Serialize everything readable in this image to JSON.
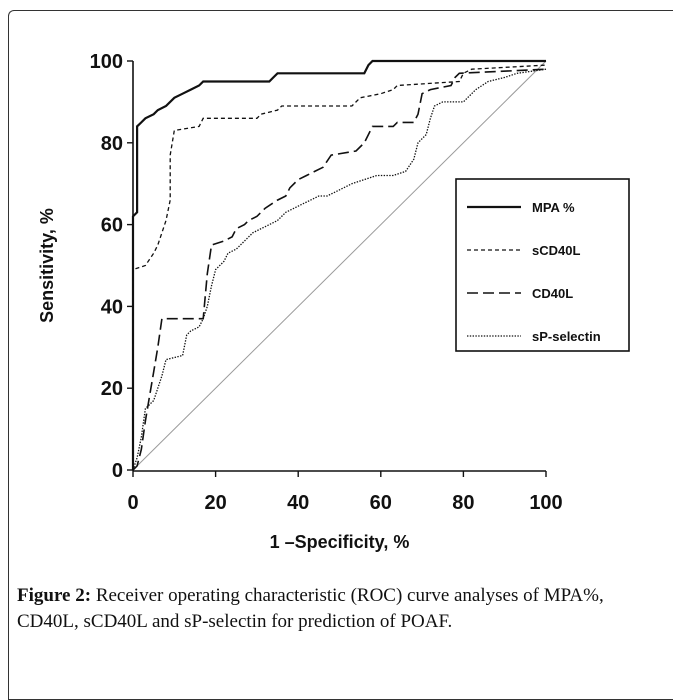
{
  "caption": {
    "label": "Figure 2:",
    "text": " Receiver operating characteristic (ROC) curve analyses of MPA%, CD40L, sCD40L and sP-selectin for prediction of POAF."
  },
  "chart_data": {
    "type": "line",
    "title": "",
    "xlabel": "1 –Specificity, %",
    "ylabel": "Sensitivity, %",
    "xlim": [
      0,
      100
    ],
    "ylim": [
      0,
      100
    ],
    "x_ticks": [
      "0",
      "20",
      "40",
      "60",
      "80",
      "100"
    ],
    "y_ticks": [
      "0",
      "20",
      "40",
      "60",
      "80",
      "100"
    ],
    "grid": false,
    "legend_position": "right",
    "series": [
      {
        "name": "MPA %",
        "style": "solid",
        "points": [
          [
            0,
            0
          ],
          [
            0,
            62
          ],
          [
            1,
            63
          ],
          [
            1,
            84
          ],
          [
            2,
            85
          ],
          [
            3,
            86
          ],
          [
            5,
            87
          ],
          [
            6,
            88
          ],
          [
            8,
            89
          ],
          [
            10,
            91
          ],
          [
            12,
            92
          ],
          [
            14,
            93
          ],
          [
            16,
            94
          ],
          [
            17,
            95
          ],
          [
            33,
            95
          ],
          [
            34,
            96
          ],
          [
            35,
            97
          ],
          [
            56,
            97
          ],
          [
            57,
            99
          ],
          [
            58,
            100
          ],
          [
            100,
            100
          ]
        ]
      },
      {
        "name": "sCD40L",
        "style": "dashed",
        "points": [
          [
            0,
            0
          ],
          [
            0,
            49
          ],
          [
            3,
            50
          ],
          [
            5,
            53
          ],
          [
            6,
            55
          ],
          [
            7,
            58
          ],
          [
            8,
            61
          ],
          [
            9,
            66
          ],
          [
            9,
            77
          ],
          [
            10,
            83
          ],
          [
            16,
            84
          ],
          [
            17,
            86
          ],
          [
            30,
            86
          ],
          [
            31,
            87
          ],
          [
            35,
            88
          ],
          [
            36,
            89
          ],
          [
            53,
            89
          ],
          [
            55,
            91
          ],
          [
            60,
            92
          ],
          [
            63,
            93
          ],
          [
            64,
            94
          ],
          [
            79,
            95
          ],
          [
            80,
            97
          ],
          [
            82,
            98
          ],
          [
            100,
            99
          ]
        ]
      },
      {
        "name": "CD40L",
        "style": "longdash",
        "points": [
          [
            0,
            0
          ],
          [
            1,
            1
          ],
          [
            2,
            5
          ],
          [
            3,
            12
          ],
          [
            4,
            18
          ],
          [
            5,
            24
          ],
          [
            6,
            30
          ],
          [
            7,
            37
          ],
          [
            17,
            37
          ],
          [
            18,
            48
          ],
          [
            19,
            55
          ],
          [
            22,
            56
          ],
          [
            24,
            57
          ],
          [
            25,
            59
          ],
          [
            27,
            60
          ],
          [
            28,
            61
          ],
          [
            30,
            62
          ],
          [
            32,
            64
          ],
          [
            35,
            66
          ],
          [
            37,
            67
          ],
          [
            38,
            69
          ],
          [
            40,
            71
          ],
          [
            42,
            72
          ],
          [
            44,
            73
          ],
          [
            46,
            74
          ],
          [
            48,
            77
          ],
          [
            54,
            78
          ],
          [
            56,
            80
          ],
          [
            57,
            82
          ],
          [
            58,
            84
          ],
          [
            63,
            84
          ],
          [
            64,
            85
          ],
          [
            68,
            85
          ],
          [
            69,
            87
          ],
          [
            70,
            92
          ],
          [
            72,
            93
          ],
          [
            77,
            94
          ],
          [
            78,
            96
          ],
          [
            79,
            97
          ],
          [
            100,
            98
          ]
        ]
      },
      {
        "name": "sP-selectin",
        "style": "dotted",
        "points": [
          [
            0,
            0
          ],
          [
            1,
            3
          ],
          [
            2,
            8
          ],
          [
            3,
            15
          ],
          [
            4,
            16
          ],
          [
            5,
            17
          ],
          [
            6,
            20
          ],
          [
            7,
            23
          ],
          [
            8,
            27
          ],
          [
            12,
            28
          ],
          [
            13,
            33
          ],
          [
            14,
            34
          ],
          [
            16,
            35
          ],
          [
            17,
            37
          ],
          [
            18,
            40
          ],
          [
            19,
            45
          ],
          [
            20,
            49
          ],
          [
            22,
            51
          ],
          [
            23,
            53
          ],
          [
            25,
            54
          ],
          [
            27,
            56
          ],
          [
            29,
            58
          ],
          [
            31,
            59
          ],
          [
            33,
            60
          ],
          [
            35,
            61
          ],
          [
            37,
            63
          ],
          [
            39,
            64
          ],
          [
            41,
            65
          ],
          [
            43,
            66
          ],
          [
            45,
            67
          ],
          [
            47,
            67
          ],
          [
            49,
            68
          ],
          [
            51,
            69
          ],
          [
            53,
            70
          ],
          [
            56,
            71
          ],
          [
            59,
            72
          ],
          [
            63,
            72
          ],
          [
            66,
            73
          ],
          [
            68,
            76
          ],
          [
            69,
            80
          ],
          [
            70,
            81
          ],
          [
            71,
            82
          ],
          [
            72,
            86
          ],
          [
            73,
            89
          ],
          [
            75,
            90
          ],
          [
            80,
            90
          ],
          [
            83,
            93
          ],
          [
            86,
            95
          ],
          [
            90,
            96
          ],
          [
            93,
            97
          ],
          [
            100,
            98
          ]
        ]
      }
    ],
    "reference_line": {
      "points": [
        [
          0,
          0
        ],
        [
          100,
          100
        ]
      ]
    }
  }
}
